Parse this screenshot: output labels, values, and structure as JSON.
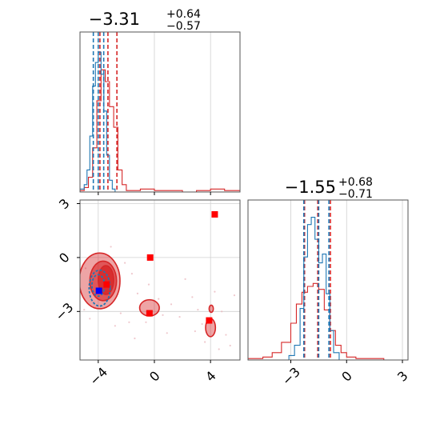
{
  "colors": {
    "red": "#d62728",
    "blue": "#1f77b4",
    "blue_marker": "#0000ff",
    "red_marker": "#ff0000",
    "grid": "#d0d0d0",
    "frame": "#555555"
  },
  "chart_data": [
    {
      "type": "histogram",
      "panel": "top-left",
      "title": "-3.31",
      "title_sup": "+0.64",
      "title_sub": "-0.57",
      "xlim": [
        -5.3,
        6.1
      ],
      "grid": true,
      "xticks": [
        -4,
        0,
        4
      ],
      "series": [
        {
          "color": "#d62728",
          "quantiles": [
            -3.88,
            -3.31,
            -2.67
          ],
          "bin_edges": [
            -5.3,
            -5.0,
            -4.7,
            -4.4,
            -4.1,
            -3.8,
            -3.5,
            -3.2,
            -2.9,
            -2.6,
            -2.3,
            -2.0,
            -1.0,
            0.0,
            1.0,
            2.0,
            3.0,
            4.0,
            5.0,
            6.1
          ],
          "counts": [
            0.01,
            0.03,
            0.1,
            0.3,
            0.62,
            0.83,
            0.75,
            0.58,
            0.44,
            0.15,
            0.05,
            0.01,
            0.02,
            0.01,
            0.01,
            0.0,
            0.01,
            0.02,
            0.01
          ]
        },
        {
          "color": "#1f77b4",
          "quantiles": [
            -4.35,
            -4.0,
            -3.61
          ],
          "bin_edges": [
            -5.3,
            -5.0,
            -4.8,
            -4.6,
            -4.4,
            -4.2,
            -4.0,
            -3.8,
            -3.6,
            -3.4,
            -3.2,
            -3.0,
            -2.8
          ],
          "counts": [
            0.02,
            0.05,
            0.15,
            0.38,
            0.72,
            0.88,
            0.95,
            0.8,
            0.55,
            0.25,
            0.08,
            0.02
          ]
        }
      ]
    },
    {
      "type": "histogram",
      "panel": "bottom-right",
      "title": "-1.55",
      "title_sup": "+0.68",
      "title_sub": "-0.71",
      "xlim": [
        -5.3,
        3.3
      ],
      "grid": true,
      "xticks": [
        -3,
        0,
        3
      ],
      "series": [
        {
          "color": "#d62728",
          "quantiles": [
            -2.26,
            -1.55,
            -0.87
          ],
          "bin_edges": [
            -5.3,
            -4.5,
            -4.0,
            -3.5,
            -3.0,
            -2.7,
            -2.4,
            -2.1,
            -1.8,
            -1.5,
            -1.2,
            -0.9,
            -0.6,
            -0.3,
            0.0,
            0.5,
            1.0,
            2.0,
            3.3
          ],
          "counts": [
            0.01,
            0.02,
            0.05,
            0.12,
            0.25,
            0.38,
            0.46,
            0.5,
            0.52,
            0.48,
            0.34,
            0.2,
            0.1,
            0.05,
            0.02,
            0.01,
            0.01,
            0.0
          ]
        },
        {
          "color": "#1f77b4",
          "quantiles": [
            -2.3,
            -1.5,
            -0.95
          ],
          "bin_edges": [
            -3.1,
            -2.8,
            -2.5,
            -2.3,
            -2.1,
            -1.9,
            -1.7,
            -1.5,
            -1.3,
            -1.1,
            -0.9,
            -0.7,
            -0.4
          ],
          "counts": [
            0.03,
            0.1,
            0.35,
            0.7,
            0.92,
            0.97,
            0.82,
            0.66,
            0.72,
            0.45,
            0.2,
            0.05
          ]
        }
      ]
    },
    {
      "type": "scatter",
      "panel": "bottom-left",
      "xlim": [
        -5.3,
        6.1
      ],
      "ylim": [
        -5.7,
        3.2
      ],
      "grid": true,
      "xticks": [
        -4,
        0,
        4
      ],
      "yticks": [
        3,
        0,
        -3
      ],
      "contours": {
        "red": [
          {
            "center": [
              -3.9,
              -1.3
            ],
            "rx": 1.45,
            "ry": 1.55,
            "level": 1
          },
          {
            "center": [
              -3.65,
              -1.3
            ],
            "rx": 0.95,
            "ry": 1.1,
            "level": 2
          },
          {
            "center": [
              -3.45,
              -1.25
            ],
            "rx": 0.55,
            "ry": 0.8,
            "level": 3
          },
          {
            "center": [
              -0.35,
              -2.8
            ],
            "rx": 0.7,
            "ry": 0.45,
            "level": 1
          },
          {
            "center": [
              4.0,
              -3.9
            ],
            "rx": 0.35,
            "ry": 0.5,
            "level": 1
          },
          {
            "center": [
              4.05,
              -2.85
            ],
            "rx": 0.15,
            "ry": 0.2,
            "level": 1
          }
        ],
        "blue": [
          {
            "center": [
              -3.9,
              -1.7
            ],
            "rx": 0.75,
            "ry": 1.0
          },
          {
            "center": [
              -4.0,
              -1.55
            ],
            "rx": 0.45,
            "ry": 0.6
          }
        ]
      },
      "markers": {
        "red": [
          [
            4.3,
            2.4
          ],
          [
            -0.3,
            0.0
          ],
          [
            -3.4,
            -1.5
          ],
          [
            -0.35,
            -3.1
          ],
          [
            3.9,
            -3.5
          ]
        ],
        "blue": [
          [
            -3.95,
            -1.85
          ]
        ]
      },
      "scatter_points": [
        [
          -2.1,
          -0.3
        ],
        [
          -1.6,
          -0.9
        ],
        [
          -1.2,
          -2.0
        ],
        [
          -2.4,
          -3.1
        ],
        [
          -1.8,
          -3.6
        ],
        [
          -0.4,
          -1.5
        ],
        [
          0.3,
          -2.3
        ],
        [
          -0.6,
          -3.6
        ],
        [
          0.6,
          -3.2
        ],
        [
          1.2,
          -2.6
        ],
        [
          2.7,
          -2.2
        ],
        [
          3.1,
          -2.9
        ],
        [
          3.4,
          -3.7
        ],
        [
          4.8,
          -3.0
        ],
        [
          5.1,
          -4.3
        ],
        [
          5.4,
          -4.9
        ],
        [
          4.6,
          -5.1
        ],
        [
          3.6,
          -4.7
        ],
        [
          2.9,
          -4.1
        ],
        [
          -4.9,
          -0.6
        ],
        [
          -5.0,
          -2.9
        ],
        [
          -4.6,
          -3.4
        ],
        [
          -3.1,
          0.6
        ],
        [
          -2.8,
          -3.8
        ],
        [
          -1.4,
          -4.5
        ],
        [
          0.9,
          -4.2
        ],
        [
          1.8,
          -3.3
        ],
        [
          4.3,
          -1.9
        ],
        [
          5.7,
          -2.1
        ],
        [
          2.2,
          -1.2
        ]
      ]
    }
  ]
}
